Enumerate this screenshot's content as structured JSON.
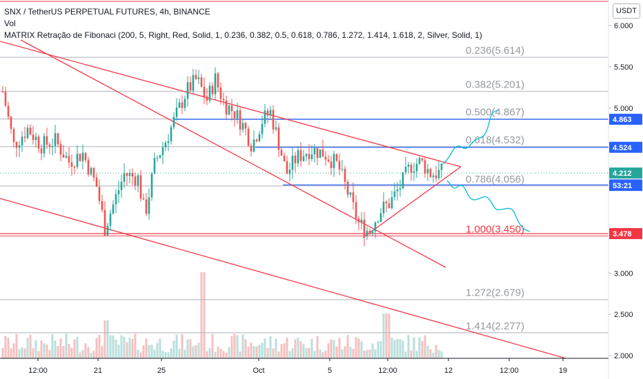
{
  "legend": {
    "title": "SNX / TetherUS PERPETUAL FUTURES, 4h, BINANCE",
    "volume_label": "Vol",
    "indicator": "MATRIX Retração de Fibonaci (200, 5, Right, Red, Solid, 1, 0.236, 0.382, 0.5, 0.618, 0.786, 1.272, 1.414, 1.618, 2, Silver, Solid, 1)"
  },
  "price_scale": {
    "currency": "USDT",
    "ticks": [
      "6.000",
      "5.500",
      "5.000",
      "3.000",
      "2.500",
      "2.000"
    ]
  },
  "time_axis": {
    "labels": [
      "12:00",
      "21",
      "25",
      "Oct",
      "5",
      "12:00",
      "12",
      "12:00",
      "19"
    ]
  },
  "chart_data": {
    "type": "candlestick",
    "symbol": "SNX / TetherUS PERPETUAL FUTURES",
    "interval": "4h",
    "exchange": "BINANCE",
    "ylim": [
      1.97,
      6.2
    ],
    "current_price": 4.212,
    "countdown": "53:21",
    "fib_levels": [
      {
        "level": "0.236",
        "price": 5.614,
        "label": "0.236(5.614)",
        "color": "#b2b5be"
      },
      {
        "level": "0.382",
        "price": 5.201,
        "label": "0.382(5.201)",
        "color": "#b2b5be"
      },
      {
        "level": "0.500",
        "price": 4.867,
        "label": "0.500(4.867)",
        "color": "#b2b5be"
      },
      {
        "level": "0.618",
        "price": 4.532,
        "label": "0.618(4.532)",
        "color": "#b2b5be"
      },
      {
        "level": "0.786",
        "price": 4.056,
        "label": "0.786(4.056)",
        "color": "#b2b5be"
      },
      {
        "level": "1.000",
        "price": 3.45,
        "label": "1.000(3.450)",
        "color": "#f23645"
      },
      {
        "level": "1.272",
        "price": 2.679,
        "label": "1.272(2.679)",
        "color": "#b2b5be"
      },
      {
        "level": "1.414",
        "price": 2.277,
        "label": "1.414(2.277)",
        "color": "#b2b5be"
      }
    ],
    "horizontal_levels": [
      {
        "price": 4.863,
        "label": "4.863",
        "color": "#2962ff"
      },
      {
        "price": 4.524,
        "label": "4.524",
        "color": "#2962ff"
      },
      {
        "price": 4.068,
        "label": "4.068",
        "color": "#2962ff"
      },
      {
        "price": 3.478,
        "label": "3.478",
        "color": "#f23645"
      }
    ],
    "colors": {
      "up": "#26a69a",
      "down": "#ef5350",
      "trendline": "#f23645",
      "projection": "#00bcd4",
      "level_blue": "#2962ff",
      "price_badge": "#26a69a",
      "countdown_badge": "#2962ff"
    }
  }
}
